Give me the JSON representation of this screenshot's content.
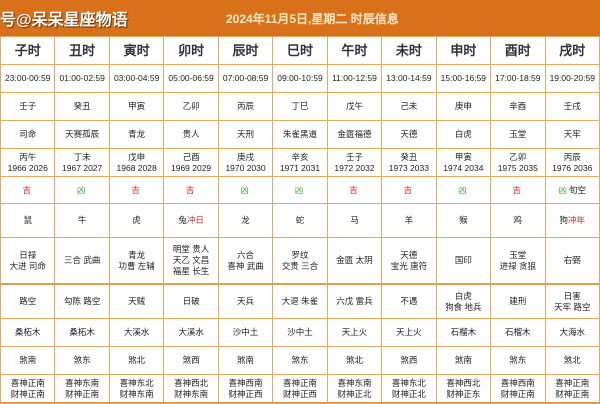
{
  "header": {
    "brand": "号@呆呆星座物语",
    "title": "2024年11月5日,星期二 时辰信息"
  },
  "colors": {
    "header_bg": "#d8711a",
    "border": "#e8a860",
    "ji": "#d42a2a",
    "xiong": "#3aa83a"
  },
  "columns": [
    {
      "name": "子时",
      "time": "23:00-00:59",
      "ganzhi": "壬子",
      "shen": "司命",
      "year1": "丙午",
      "year2": "1966 2026",
      "luck": "吉",
      "luck_type": "ji",
      "luck_extra": "",
      "animal": "鼠",
      "animal_extra": "",
      "good": [
        "日禄",
        "大进 司命"
      ],
      "bad": [
        "路空"
      ],
      "nayin": "桑柘木",
      "sha": "煞南",
      "xi": "喜神正南",
      "cai": "财神正南"
    },
    {
      "name": "丑时",
      "time": "01:00-02:59",
      "ganzhi": "癸丑",
      "shen": "天赛孤辰",
      "year1": "丁未",
      "year2": "1967 2027",
      "luck": "凶",
      "luck_type": "xiong",
      "luck_extra": "",
      "animal": "牛",
      "animal_extra": "",
      "good": [
        "三合 武曲"
      ],
      "bad": [
        "勾陈 路空"
      ],
      "nayin": "桑柘木",
      "sha": "煞东",
      "xi": "喜神东南",
      "cai": "财神正南"
    },
    {
      "name": "寅时",
      "time": "03:00-04:59",
      "ganzhi": "甲寅",
      "shen": "青龙",
      "year1": "戊申",
      "year2": "1968 2028",
      "luck": "吉",
      "luck_type": "ji",
      "luck_extra": "",
      "animal": "虎",
      "animal_extra": "",
      "good": [
        "青龙",
        "功曹 左辅"
      ],
      "bad": [
        "天贼"
      ],
      "nayin": "大溪水",
      "sha": "煞北",
      "xi": "喜神东北",
      "cai": "财神东南"
    },
    {
      "name": "卯时",
      "time": "05:00-06:59",
      "ganzhi": "乙卯",
      "shen": "贵人",
      "year1": "己酉",
      "year2": "1969 2029",
      "luck": "吉",
      "luck_type": "ji",
      "luck_extra": "",
      "animal": "兔",
      "animal_extra": "冲日",
      "good": [
        "明堂 贵人",
        "天乙 文昌",
        "福星 长生"
      ],
      "bad": [
        "日破"
      ],
      "nayin": "大溪水",
      "sha": "煞西",
      "xi": "喜神西北",
      "cai": "财神东南"
    },
    {
      "name": "辰时",
      "time": "07:00-08:59",
      "ganzhi": "丙辰",
      "shen": "天刑",
      "year1": "庚戌",
      "year2": "1970 2030",
      "luck": "凶",
      "luck_type": "xiong",
      "luck_extra": "",
      "animal": "龙",
      "animal_extra": "",
      "good": [
        "六合",
        "喜神 武曲"
      ],
      "bad": [
        "天兵"
      ],
      "nayin": "沙中土",
      "sha": "煞南",
      "xi": "喜神西南",
      "cai": "财神正西"
    },
    {
      "name": "巳时",
      "time": "09:00-10:59",
      "ganzhi": "丁巳",
      "shen": "朱雀黑道",
      "year1": "辛亥",
      "year2": "1971 2031",
      "luck": "凶",
      "luck_type": "xiong",
      "luck_extra": "",
      "animal": "蛇",
      "animal_extra": "",
      "good": [
        "罗纹",
        "交贵 三合"
      ],
      "bad": [
        "大退 朱雀"
      ],
      "nayin": "沙中土",
      "sha": "煞东",
      "xi": "喜神正南",
      "cai": "财神正西"
    },
    {
      "name": "午时",
      "time": "11:00-12:59",
      "ganzhi": "戊午",
      "shen": "金匮福德",
      "year1": "壬子",
      "year2": "1972 2032",
      "luck": "吉",
      "luck_type": "ji",
      "luck_extra": "",
      "animal": "马",
      "animal_extra": "",
      "good": [
        "金匮 太阴"
      ],
      "bad": [
        "六戊 雷兵"
      ],
      "nayin": "天上火",
      "sha": "煞北",
      "xi": "喜神东南",
      "cai": "财神正北"
    },
    {
      "name": "未时",
      "time": "13:00-14:59",
      "ganzhi": "己未",
      "shen": "天德",
      "year1": "癸丑",
      "year2": "1973 2033",
      "luck": "吉",
      "luck_type": "ji",
      "luck_extra": "",
      "animal": "羊",
      "animal_extra": "",
      "good": [
        "天德",
        "宝光 唐符"
      ],
      "bad": [
        "不遇"
      ],
      "nayin": "天上火",
      "sha": "煞西",
      "xi": "喜神东北",
      "cai": "财神正北"
    },
    {
      "name": "申时",
      "time": "15:00-16:59",
      "ganzhi": "庚申",
      "shen": "白虎",
      "year1": "甲寅",
      "year2": "1974 2034",
      "luck": "凶",
      "luck_type": "xiong",
      "luck_extra": "",
      "animal": "猴",
      "animal_extra": "",
      "good": [
        "国印"
      ],
      "bad": [
        "白虎",
        "狗食 地兵"
      ],
      "nayin": "石榴木",
      "sha": "煞南",
      "xi": "喜神西北",
      "cai": "财神正东"
    },
    {
      "name": "酉时",
      "time": "17:00-18:59",
      "ganzhi": "辛酉",
      "shen": "玉堂",
      "year1": "乙卯",
      "year2": "1975 2035",
      "luck": "吉",
      "luck_type": "ji",
      "luck_extra": "",
      "animal": "鸡",
      "animal_extra": "",
      "good": [
        "玉堂",
        "进禄 贪狼"
      ],
      "bad": [
        "建刑"
      ],
      "nayin": "石榴木",
      "sha": "煞东",
      "xi": "喜神西南",
      "cai": "财神正南"
    },
    {
      "name": "戌时",
      "time": "19:00-20:59",
      "ganzhi": "壬戌",
      "shen": "天牢",
      "year1": "丙辰",
      "year2": "1976 2036",
      "luck": "凶",
      "luck_type": "xiong",
      "luck_extra": "旬空",
      "animal": "狗",
      "animal_extra": "冲年",
      "good": [
        "右弼"
      ],
      "bad": [
        "日害",
        "天牢 路空"
      ],
      "nayin": "大海水",
      "sha": "煞北",
      "xi": "喜神正南",
      "cai": "财神正南"
    }
  ]
}
